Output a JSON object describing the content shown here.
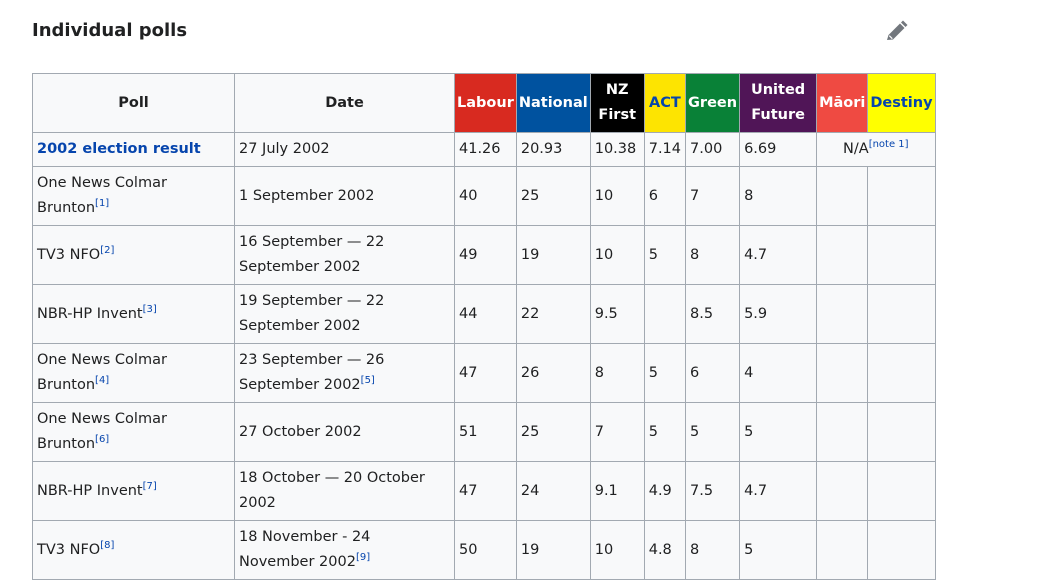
{
  "heading": "Individual polls",
  "table": {
    "headers": {
      "poll": "Poll",
      "date": "Date",
      "parties": [
        {
          "label_lines": [
            "Labour"
          ],
          "bg": "#d82a20",
          "fg": "#ffffff"
        },
        {
          "label_lines": [
            "National"
          ],
          "bg": "#00529f",
          "fg": "#ffffff"
        },
        {
          "label_lines": [
            "NZ",
            "First"
          ],
          "bg": "#000000",
          "fg": "#ffffff"
        },
        {
          "label_lines": [
            "ACT"
          ],
          "bg": "#fde401",
          "fg": "#0645ad"
        },
        {
          "label_lines": [
            "Green"
          ],
          "bg": "#098137",
          "fg": "#ffffff"
        },
        {
          "label_lines": [
            "United",
            "Future"
          ],
          "bg": "#501557",
          "fg": "#ffffff"
        },
        {
          "label_lines": [
            "Māori"
          ],
          "bg": "#ef4a42",
          "fg": "#ffffff"
        },
        {
          "label_lines": [
            "Destiny"
          ],
          "bg": "#ffff00",
          "fg": "#0645ad"
        }
      ]
    },
    "result_row": {
      "poll": "2002 election result",
      "date": "27 July 2002",
      "values": [
        "41.26",
        "20.93",
        "10.38",
        "7.14",
        "7.00",
        "6.69"
      ],
      "na": "N/A",
      "na_note": "[note 1]"
    },
    "rows": [
      {
        "poll": "One News Colmar Brunton",
        "poll_ref": "[1]",
        "date": "1 September 2002",
        "date_ref": "",
        "values": [
          "40",
          "25",
          "10",
          "6",
          "7",
          "8"
        ]
      },
      {
        "poll": "TV3 NFO",
        "poll_ref": "[2]",
        "date": "16 September — 22 September 2002",
        "date_ref": "",
        "values": [
          "49",
          "19",
          "10",
          "5",
          "8",
          "4.7"
        ]
      },
      {
        "poll": "NBR-HP Invent",
        "poll_ref": "[3]",
        "date": "19 September — 22 September 2002",
        "date_ref": "",
        "values": [
          "44",
          "22",
          "9.5",
          "",
          "8.5",
          "5.9"
        ]
      },
      {
        "poll": "One News Colmar Brunton",
        "poll_ref": "[4]",
        "date": "23 September — 26 September 2002",
        "date_ref": "[5]",
        "values": [
          "47",
          "26",
          "8",
          "5",
          "6",
          "4"
        ]
      },
      {
        "poll": "One News Colmar Brunton",
        "poll_ref": "[6]",
        "date": "27 October 2002",
        "date_ref": "",
        "values": [
          "51",
          "25",
          "7",
          "5",
          "5",
          "5"
        ]
      },
      {
        "poll": "NBR-HP Invent",
        "poll_ref": "[7]",
        "date": "18 October — 20 October 2002",
        "date_ref": "",
        "values": [
          "47",
          "24",
          "9.1",
          "4.9",
          "7.5",
          "4.7"
        ]
      },
      {
        "poll": "TV3 NFO",
        "poll_ref": "[8]",
        "date": "18 November - 24 November 2002",
        "date_ref": "[9]",
        "values": [
          "50",
          "19",
          "10",
          "4.8",
          "8",
          "5"
        ]
      }
    ]
  }
}
